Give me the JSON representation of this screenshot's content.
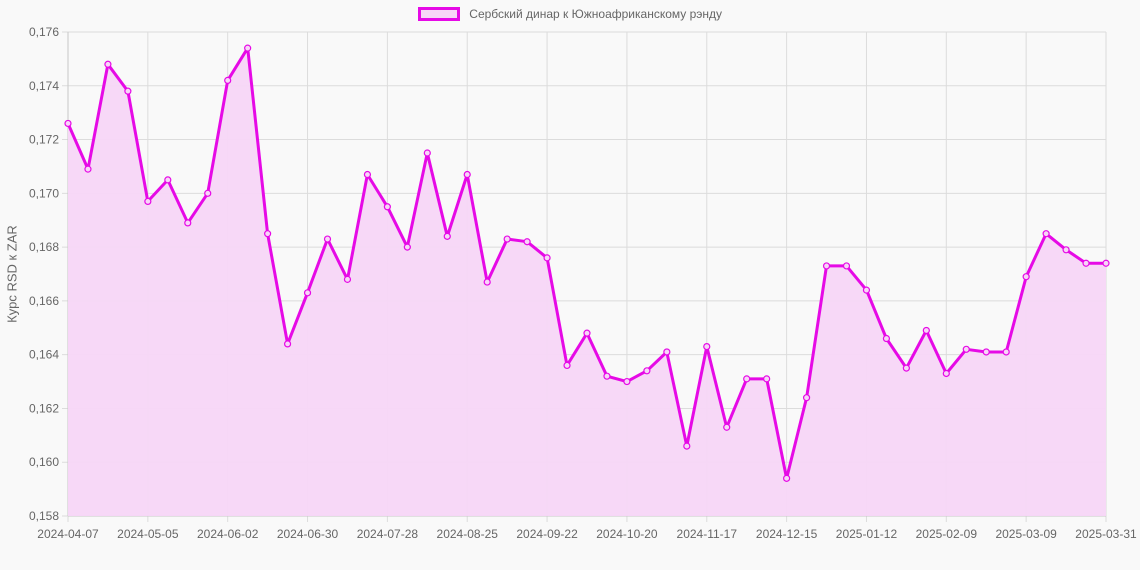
{
  "chart_data": {
    "type": "line",
    "title": "",
    "legend": [
      "Сербский динар к Южноафриканскому рэнду"
    ],
    "legend_position": "top",
    "xlabel": "",
    "ylabel": "Курс RSD к ZAR",
    "ylim": [
      0.158,
      0.176
    ],
    "y_ticks": [
      "0,158",
      "0,160",
      "0,162",
      "0,164",
      "0,166",
      "0,168",
      "0,170",
      "0,172",
      "0,174",
      "0,176"
    ],
    "x_tick_labels": [
      "2024-04-07",
      "2024-05-05",
      "2024-06-02",
      "2024-06-30",
      "2024-07-28",
      "2024-08-25",
      "2024-09-22",
      "2024-10-20",
      "2024-11-17",
      "2024-12-15",
      "2025-01-12",
      "2025-02-09",
      "2025-03-09",
      "2025-03-31"
    ],
    "x_tick_indices": [
      0,
      4,
      8,
      12,
      16,
      20,
      24,
      28,
      32,
      36,
      40,
      44,
      48,
      52
    ],
    "grid": true,
    "fill": true,
    "series": [
      {
        "name": "Сербский динар к Южноафриканскому рэнду",
        "color": "#e60ae6",
        "fill_color": "#f7d6f7",
        "values": [
          0.1726,
          0.1709,
          0.1748,
          0.1738,
          0.1697,
          0.1705,
          0.1689,
          0.17,
          0.1742,
          0.1754,
          0.1685,
          0.1644,
          0.1663,
          0.1683,
          0.1668,
          0.1707,
          0.1695,
          0.168,
          0.1715,
          0.1684,
          0.1707,
          0.1667,
          0.1683,
          0.1682,
          0.1676,
          0.1636,
          0.1648,
          0.1632,
          0.163,
          0.1634,
          0.1641,
          0.1606,
          0.1643,
          0.1613,
          0.1631,
          0.1631,
          0.1594,
          0.1624,
          0.1673,
          0.1673,
          0.1664,
          0.1646,
          0.1635,
          0.1649,
          0.1633,
          0.1642,
          0.1641,
          0.1641,
          0.1669,
          0.1685,
          0.1679,
          0.1674,
          0.1674
        ]
      }
    ]
  },
  "legend": {
    "label": "Сербский динар к Южноафриканскому рэнду"
  },
  "axis": {
    "ylabel": "Курс RSD к ZAR"
  }
}
